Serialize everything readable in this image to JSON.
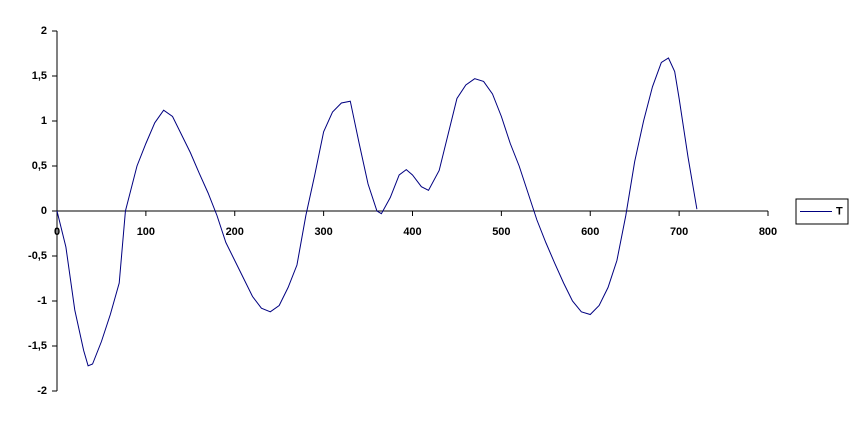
{
  "chart_data": {
    "type": "line",
    "x": [
      0,
      10,
      20,
      30,
      35,
      40,
      50,
      60,
      70,
      77,
      90,
      100,
      110,
      120,
      130,
      140,
      150,
      160,
      170,
      180,
      190,
      200,
      210,
      220,
      230,
      240,
      250,
      260,
      270,
      280,
      290,
      300,
      310,
      320,
      330,
      340,
      350,
      360,
      365,
      375,
      385,
      393,
      400,
      410,
      418,
      430,
      440,
      450,
      460,
      470,
      480,
      490,
      500,
      510,
      520,
      530,
      540,
      550,
      560,
      570,
      580,
      590,
      600,
      610,
      620,
      630,
      640,
      650,
      660,
      670,
      680,
      688,
      695,
      700,
      710,
      720
    ],
    "series": [
      {
        "name": "T",
        "color": "#000080",
        "values": [
          0,
          -0.4,
          -1.1,
          -1.55,
          -1.72,
          -1.7,
          -1.45,
          -1.15,
          -0.8,
          0,
          0.5,
          0.75,
          0.98,
          1.12,
          1.05,
          0.85,
          0.65,
          0.42,
          0.2,
          -0.05,
          -0.35,
          -0.55,
          -0.75,
          -0.95,
          -1.08,
          -1.12,
          -1.05,
          -0.85,
          -0.6,
          -0.05,
          0.4,
          0.88,
          1.1,
          1.2,
          1.22,
          0.75,
          0.3,
          0,
          -0.03,
          0.15,
          0.4,
          0.46,
          0.4,
          0.27,
          0.23,
          0.45,
          0.85,
          1.25,
          1.4,
          1.47,
          1.44,
          1.3,
          1.05,
          0.75,
          0.5,
          0.2,
          -0.1,
          -0.35,
          -0.58,
          -0.8,
          -1.0,
          -1.12,
          -1.15,
          -1.05,
          -0.85,
          -0.55,
          -0.05,
          0.55,
          1.0,
          1.38,
          1.65,
          1.7,
          1.55,
          1.25,
          0.6,
          0.02
        ]
      }
    ],
    "xlim": [
      0,
      800
    ],
    "xticks": [
      0,
      100,
      200,
      300,
      400,
      500,
      600,
      700,
      800
    ],
    "ylim": [
      -2,
      2
    ],
    "yticks": [
      -2,
      {
        "value": -1.5,
        "label": "-1,5"
      },
      -1,
      {
        "value": -0.5,
        "label": "-0,5"
      },
      0,
      {
        "value": 0.5,
        "label": "0,5"
      },
      1,
      {
        "value": 1.5,
        "label": "1,5"
      },
      2
    ],
    "grid": false,
    "legend": "right"
  }
}
